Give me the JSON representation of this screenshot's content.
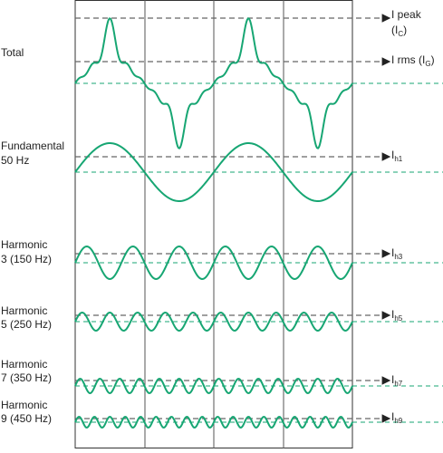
{
  "left_labels": [
    [
      "Total"
    ],
    [
      "Fundamental",
      "50 Hz"
    ],
    [
      "Harmonic",
      "3 (150 Hz)"
    ],
    [
      "Harmonic",
      "5 (250 Hz)"
    ],
    [
      "Harmonic",
      "7 (350 Hz)"
    ],
    [
      "Harmonic",
      "9 (450 Hz)"
    ]
  ],
  "right_labels": [
    [
      "I peak"
    ],
    [
      "(I",
      "C",
      ")"
    ],
    [
      "I rms (I",
      "G",
      ")"
    ],
    [
      "I",
      "h1"
    ],
    [
      "I",
      "h3"
    ],
    [
      "I",
      "h5"
    ],
    [
      "I",
      "h7"
    ],
    [
      "I",
      "h9"
    ]
  ]
}
